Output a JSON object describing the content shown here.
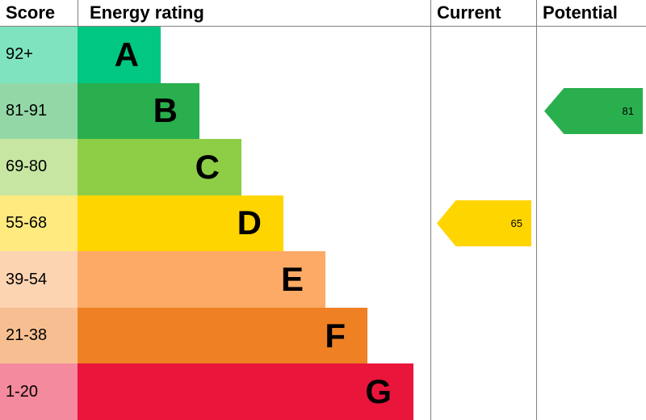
{
  "header": {
    "score": "Score",
    "energy_rating": "Energy rating",
    "current": "Current",
    "potential": "Potential"
  },
  "chart_data": {
    "type": "epc_energy_rating_bar",
    "title": "Energy rating",
    "columns": [
      "Score",
      "Energy rating",
      "Current",
      "Potential"
    ],
    "bands": [
      {
        "score_range": "92+",
        "letter": "A",
        "color": "#00c781",
        "score_bg": "#7fe3c0"
      },
      {
        "score_range": "81-91",
        "letter": "B",
        "color": "#2aaf4e",
        "score_bg": "#94d7a6"
      },
      {
        "score_range": "69-80",
        "letter": "C",
        "color": "#8dce46",
        "score_bg": "#c6e6a2"
      },
      {
        "score_range": "55-68",
        "letter": "D",
        "color": "#ffd500",
        "score_bg": "#ffea7f"
      },
      {
        "score_range": "39-54",
        "letter": "E",
        "color": "#fcaa65",
        "score_bg": "#fdd4b2"
      },
      {
        "score_range": "21-38",
        "letter": "F",
        "color": "#ef8023",
        "score_bg": "#f7bf91"
      },
      {
        "score_range": "1-20",
        "letter": "G",
        "color": "#e9153b",
        "score_bg": "#f48a9d"
      }
    ],
    "current": {
      "value": 65,
      "band": "D",
      "color": "#ffd500"
    },
    "potential": {
      "value": 81,
      "band": "B",
      "color": "#2aaf4e"
    }
  }
}
